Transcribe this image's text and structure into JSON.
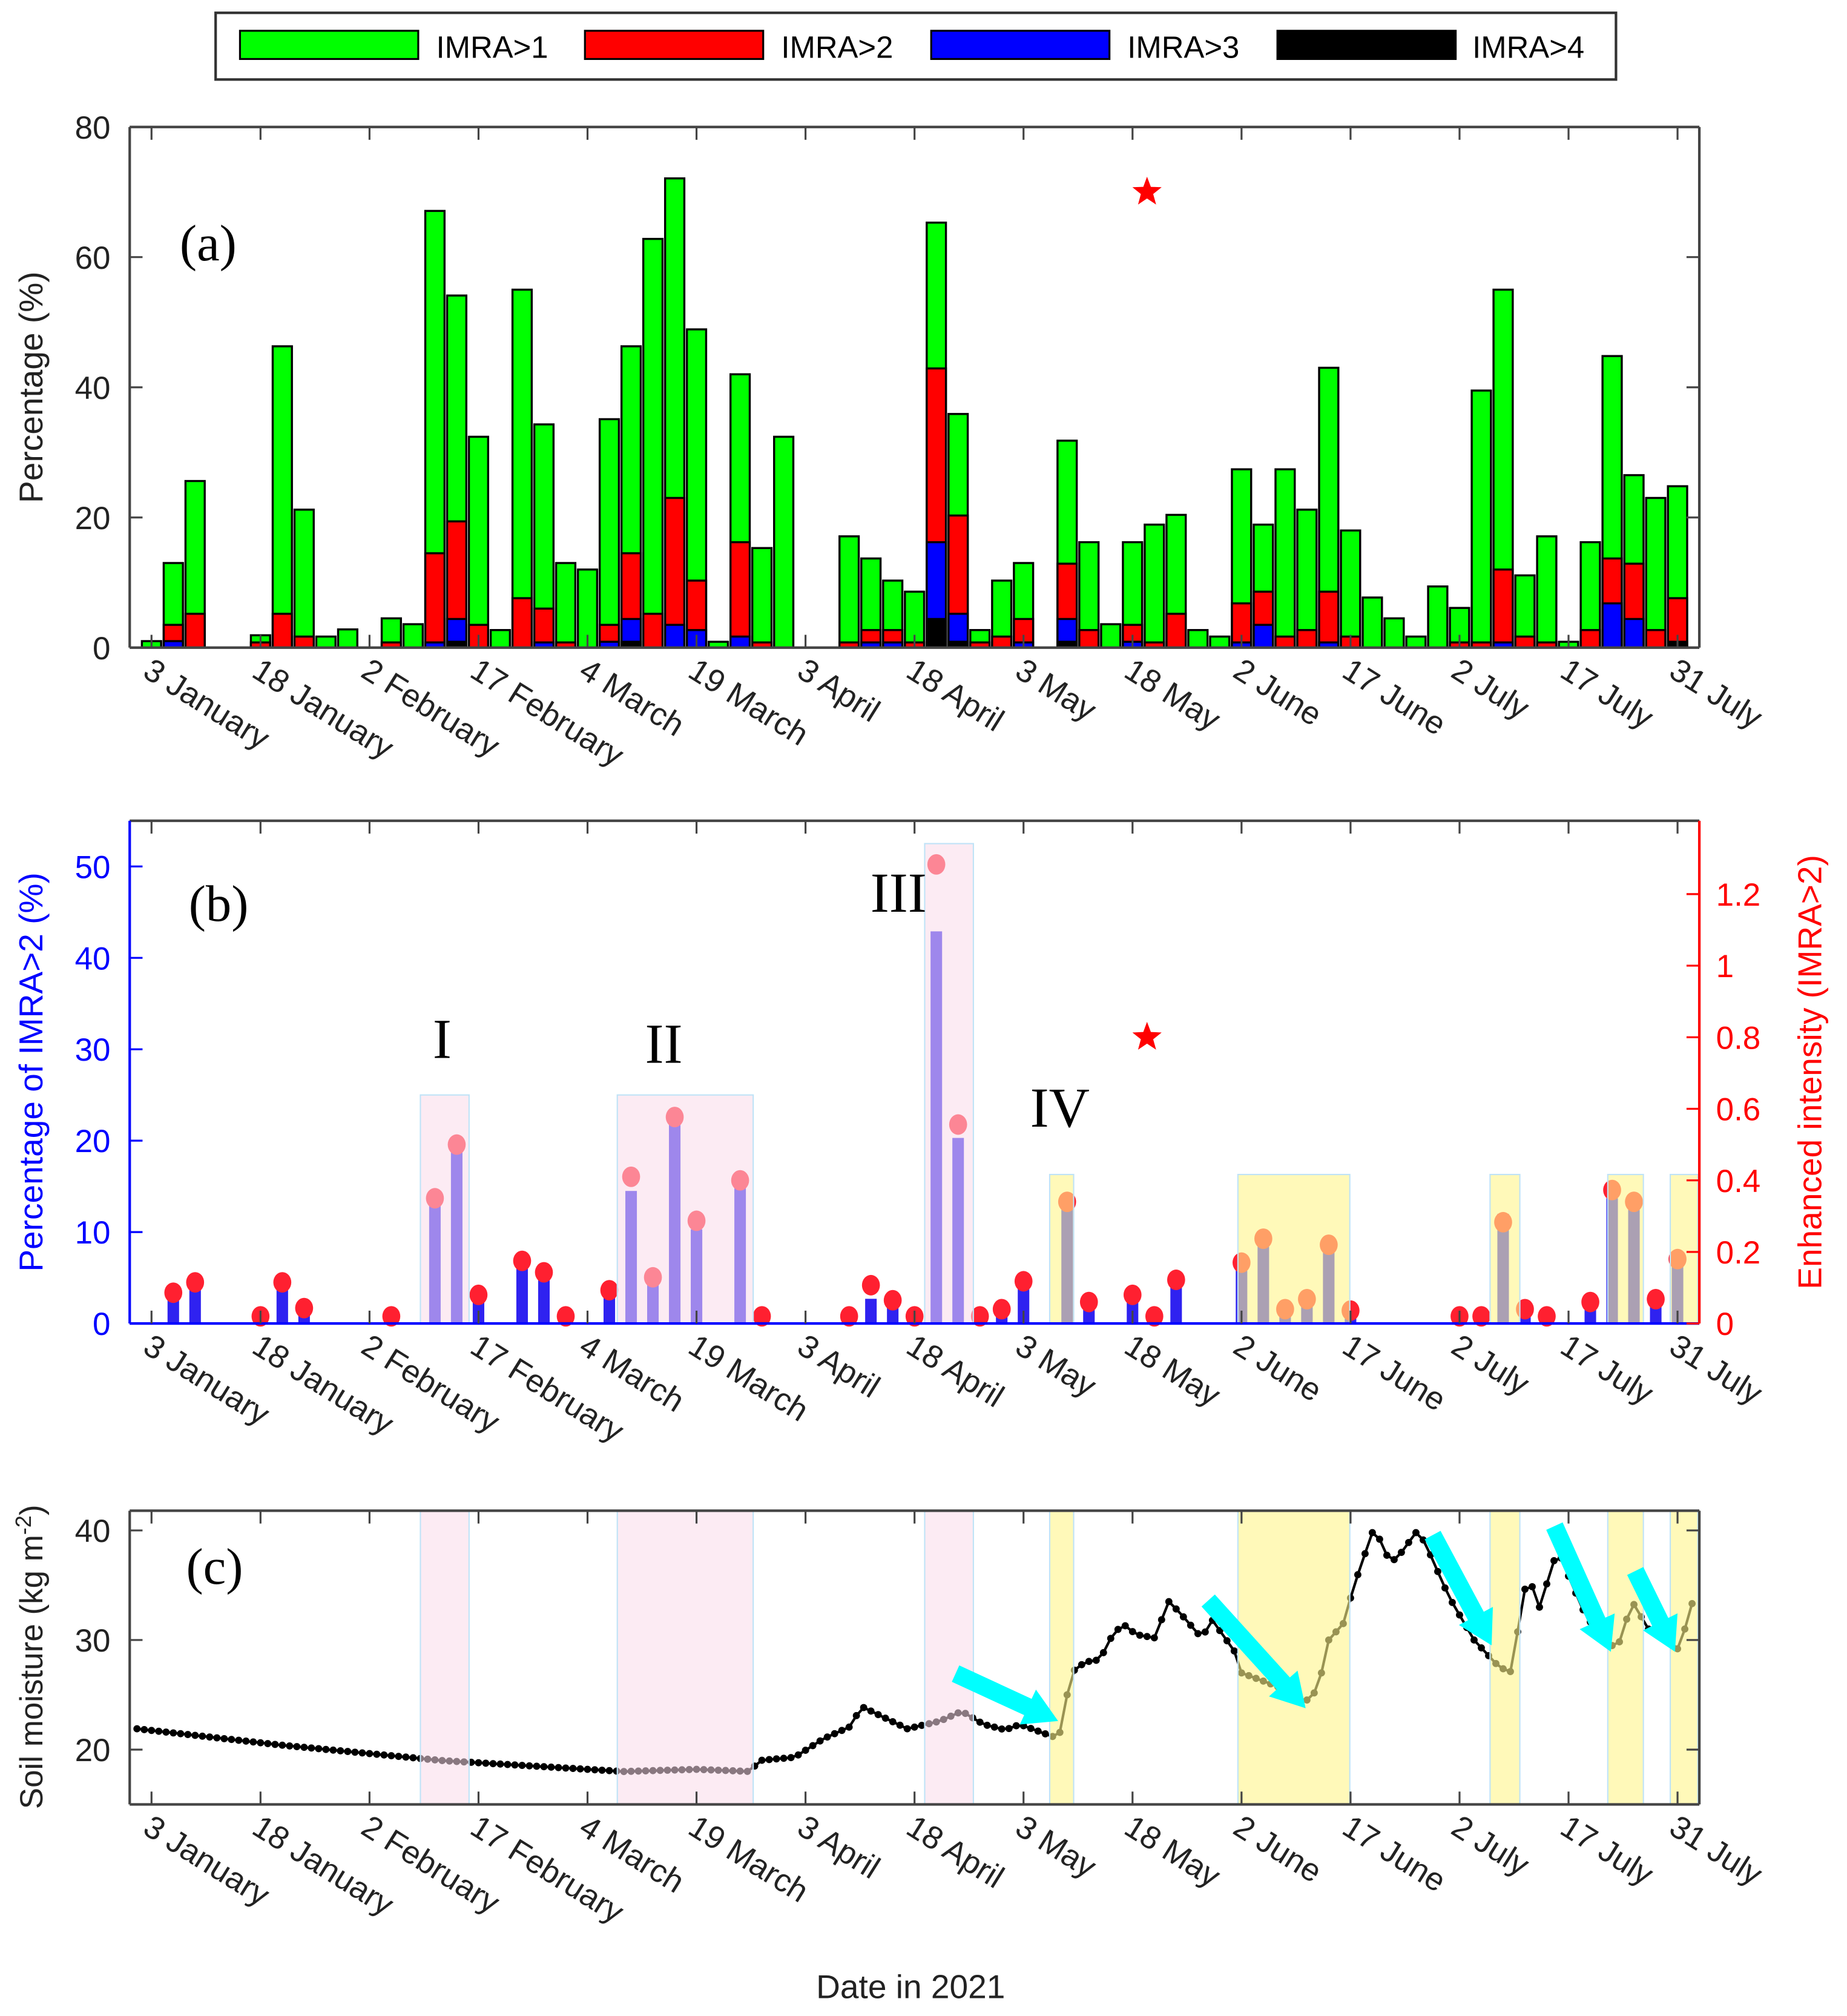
{
  "legend": [
    "IMRA>1",
    "IMRA>2",
    "IMRA>3",
    "IMRA>4"
  ],
  "colors": {
    "imra1": "#00ff00",
    "imra2": "#ff0000",
    "imra3": "#0000ff",
    "imra4": "#000000",
    "bar_b": "#2f22f0",
    "dot": "#ff2030",
    "pink": "#f9dbe9",
    "yellow": "#fff58a",
    "arrow": "#00ffff",
    "right_axis": "#ff0000",
    "left_axis_b": "#0000ff"
  },
  "xaxis": {
    "xlabel": "Date in 2021",
    "xlim": [
      -3,
      213
    ],
    "ticks": [
      {
        "day": 0,
        "label": "3 January"
      },
      {
        "day": 15,
        "label": "18 January"
      },
      {
        "day": 30,
        "label": "2 February"
      },
      {
        "day": 45,
        "label": "17 February"
      },
      {
        "day": 60,
        "label": "4 March"
      },
      {
        "day": 75,
        "label": "19 March"
      },
      {
        "day": 90,
        "label": "3 April"
      },
      {
        "day": 105,
        "label": "18 April"
      },
      {
        "day": 120,
        "label": "3 May"
      },
      {
        "day": 135,
        "label": "18 May"
      },
      {
        "day": 150,
        "label": "2 June"
      },
      {
        "day": 165,
        "label": "17 June"
      },
      {
        "day": 180,
        "label": "2 July"
      },
      {
        "day": 195,
        "label": "17 July"
      },
      {
        "day": 210,
        "label": "31 July"
      }
    ]
  },
  "chart_data": [
    {
      "type": "bar",
      "panel": "(a)",
      "ylabel": "Percentage (%)",
      "ylim": [
        0,
        80
      ],
      "yticks": [
        0,
        20,
        40,
        60,
        80
      ],
      "bar_step_days": 3,
      "series": [
        {
          "name": "IMRA>1",
          "values": [
            1,
            13,
            25.6,
            0,
            0,
            1.9,
            46.3,
            21.2,
            1.7,
            2.8,
            0,
            4.5,
            3.6,
            67.1,
            54.1,
            32.4,
            2.7,
            55,
            34.3,
            13,
            12,
            35.1,
            46.3,
            62.8,
            72.1,
            48.9,
            0.9,
            42,
            15.3,
            32.4,
            0,
            0,
            17.1,
            13.7,
            10.3,
            8.6,
            65.3,
            35.9,
            2.7,
            10.3,
            13,
            0,
            31.8,
            16.2,
            3.6,
            16.2,
            18.9,
            20.4,
            2.7,
            1.7,
            27.4,
            18.9,
            27.4,
            21.2,
            43,
            18,
            7.7,
            4.5,
            1.7,
            9.4,
            6.1,
            39.5,
            55,
            11.1,
            17.1,
            0.9,
            16.2,
            44.8,
            26.5,
            23,
            24.8
          ]
        },
        {
          "name": "IMRA>2",
          "values": [
            0,
            3.5,
            5.2,
            0,
            0,
            0.8,
            5.2,
            1.7,
            0,
            0,
            0,
            0.8,
            0,
            14.5,
            19.4,
            3.5,
            0,
            7.6,
            6,
            0.8,
            0,
            3.5,
            14.5,
            5.2,
            23,
            10.3,
            0,
            16.2,
            0.8,
            0,
            0,
            0,
            0.8,
            2.7,
            2.7,
            0.8,
            42.9,
            20.3,
            0.8,
            1.7,
            4.4,
            0,
            12.9,
            2.7,
            0,
            3.5,
            0.8,
            5.2,
            0,
            0,
            6.8,
            8.6,
            1.7,
            2.7,
            8.6,
            1.7,
            0,
            0,
            0,
            0,
            0.8,
            0.8,
            12,
            1.7,
            0.8,
            0,
            2.7,
            13.7,
            12.9,
            2.7,
            7.6
          ]
        },
        {
          "name": "IMRA>3",
          "values": [
            0,
            1,
            0,
            0,
            0,
            0,
            0,
            0,
            0,
            0,
            0,
            0,
            0,
            0.8,
            4.4,
            0,
            0,
            0,
            0.8,
            0,
            0,
            0.9,
            4.4,
            0,
            3.5,
            2.7,
            0,
            1.7,
            0,
            0,
            0,
            0,
            0,
            0.8,
            0.8,
            0,
            16.2,
            5.2,
            0,
            0,
            0.8,
            0,
            4.4,
            0,
            0,
            0.9,
            0,
            0,
            0,
            0,
            0.8,
            3.5,
            0,
            0,
            0.8,
            0,
            0,
            0,
            0,
            0,
            0,
            0,
            0.8,
            0,
            0,
            0,
            0,
            6.8,
            4.4,
            0,
            0
          ]
        },
        {
          "name": "IMRA>4",
          "values": [
            0,
            0,
            0,
            0,
            0,
            0,
            0,
            0,
            0,
            0,
            0,
            0,
            0,
            0,
            0.9,
            0,
            0,
            0,
            0,
            0,
            0,
            0,
            0.9,
            0,
            0,
            0,
            0,
            0,
            0,
            0,
            0,
            0,
            0,
            0,
            0,
            0,
            4.4,
            0.9,
            0,
            0,
            0,
            0,
            0.9,
            0,
            0,
            0,
            0,
            0,
            0,
            0,
            0,
            0,
            0,
            0,
            0,
            0,
            0,
            0,
            0,
            0,
            0,
            0,
            0,
            0,
            0,
            0,
            0,
            0,
            0,
            0,
            0.9
          ]
        }
      ],
      "star": {
        "day": 137,
        "value": 70
      }
    },
    {
      "type": "bar",
      "panel": "(b)",
      "ylabel_left": "Percentage of IMRA>2 (%)",
      "ylabel_right": "Enhanced intensity (IMRA>2)",
      "ylim_left": [
        0,
        55
      ],
      "ylim_right": [
        0,
        1.405
      ],
      "yticks_left": [
        0,
        10,
        20,
        30,
        40,
        50
      ],
      "yticks_right": [
        {
          "v": 0,
          "label": "0"
        },
        {
          "v": 0.2,
          "label": "0.2"
        },
        {
          "v": 0.4,
          "label": "0.4"
        },
        {
          "v": 0.6,
          "label": "0.6"
        },
        {
          "v": 0.8,
          "label": "0.8"
        },
        {
          "v": 1,
          "label": "1"
        },
        {
          "v": 1.2,
          "label": "1.2"
        }
      ],
      "intensity": [
        null,
        0.086,
        0.115,
        null,
        null,
        0.02,
        0.115,
        0.043,
        null,
        null,
        null,
        0.02,
        null,
        0.35,
        0.5,
        0.08,
        null,
        0.175,
        0.143,
        0.02,
        null,
        0.093,
        0.41,
        0.129,
        0.577,
        0.287,
        null,
        0.4,
        0.02,
        null,
        null,
        null,
        0.02,
        0.107,
        0.065,
        0.02,
        1.283,
        0.556,
        0.02,
        0.04,
        0.118,
        null,
        0.34,
        0.06,
        null,
        0.08,
        0.02,
        0.122,
        null,
        null,
        0.17,
        0.237,
        0.04,
        0.068,
        0.22,
        0.036,
        null,
        null,
        null,
        null,
        0.02,
        0.02,
        0.283,
        0.04,
        0.02,
        null,
        0.06,
        0.373,
        0.34,
        0.068,
        0.18
      ],
      "periods": [
        {
          "label": "I",
          "start": 37,
          "end": 43.7,
          "top": 25,
          "kind": "pink",
          "label_day": 40,
          "label_value": 31
        },
        {
          "label": "II",
          "start": 64.1,
          "end": 82.8,
          "top": 25,
          "kind": "pink",
          "label_day": 70.5,
          "label_value": 30.5
        },
        {
          "label": "III",
          "start": 106.4,
          "end": 113.1,
          "top": 52.5,
          "kind": "pink",
          "label_day": 102.8,
          "label_value": 47
        },
        {
          "label": "IV",
          "start": 123.6,
          "end": 126.9,
          "top": 16.3,
          "kind": "yellow",
          "label_day": 125,
          "label_value": 23.5
        },
        {
          "label": "",
          "start": 149.5,
          "end": 164.9,
          "top": 16.3,
          "kind": "yellow"
        },
        {
          "label": "",
          "start": 184.2,
          "end": 188.3,
          "top": 16.3,
          "kind": "yellow"
        },
        {
          "label": "",
          "start": 200.4,
          "end": 205.3,
          "top": 16.3,
          "kind": "yellow"
        },
        {
          "label": "",
          "start": 209,
          "end": 212.8,
          "top": 16.3,
          "kind": "yellow"
        }
      ],
      "star": {
        "day": 137,
        "value_right": 0.8
      }
    },
    {
      "type": "line",
      "panel": "(c)",
      "ylabel": "Soil moisture (kg m",
      "ylabel_sup": "-2",
      "ylabel_close": ")",
      "ylim": [
        15,
        41.8
      ],
      "yticks": [
        20,
        30,
        40
      ],
      "keypoints": [
        [
          -2,
          21.9
        ],
        [
          18,
          20.4
        ],
        [
          40,
          19
        ],
        [
          55,
          18.4
        ],
        [
          65,
          18.0
        ],
        [
          75,
          18.2
        ],
        [
          82.5,
          18.0
        ],
        [
          83.5,
          19
        ],
        [
          88.5,
          19.3
        ],
        [
          92.5,
          21
        ],
        [
          96.5,
          22.2
        ],
        [
          97.5,
          24
        ],
        [
          104,
          21.9
        ],
        [
          108.5,
          22.6
        ],
        [
          111.5,
          23.5
        ],
        [
          114.5,
          22.3
        ],
        [
          117.5,
          21.8
        ],
        [
          119.5,
          22.3
        ],
        [
          124.8,
          21
        ],
        [
          125.5,
          23
        ],
        [
          126.5,
          27
        ],
        [
          128.5,
          28
        ],
        [
          130.5,
          28.2
        ],
        [
          132.5,
          30.8
        ],
        [
          134,
          31.3
        ],
        [
          135.5,
          30.5
        ],
        [
          138,
          30.2
        ],
        [
          140,
          33.5
        ],
        [
          141.5,
          32.5
        ],
        [
          144.5,
          30.2
        ],
        [
          146,
          31.8
        ],
        [
          149,
          29
        ],
        [
          150,
          27
        ],
        [
          154,
          26
        ],
        [
          157,
          25.2
        ],
        [
          158.5,
          24.2
        ],
        [
          160.5,
          25.5
        ],
        [
          162,
          30
        ],
        [
          164,
          31.5
        ],
        [
          165.5,
          35
        ],
        [
          168,
          39.8
        ],
        [
          169,
          39.2
        ],
        [
          170.5,
          37
        ],
        [
          172,
          38
        ],
        [
          174,
          39.8
        ],
        [
          175.2,
          39
        ],
        [
          176.5,
          37
        ],
        [
          178.5,
          34
        ],
        [
          182,
          30
        ],
        [
          185.5,
          27.5
        ],
        [
          187.5,
          27
        ],
        [
          188.3,
          33
        ],
        [
          189.5,
          35.8
        ],
        [
          191,
          33
        ],
        [
          193.5,
          38.3
        ],
        [
          195.2,
          35.5
        ],
        [
          197.5,
          32
        ],
        [
          201,
          29.5
        ],
        [
          202.5,
          30
        ],
        [
          203.5,
          33.8
        ],
        [
          206,
          31
        ],
        [
          208.5,
          30.2
        ],
        [
          210,
          29.2
        ],
        [
          211,
          31
        ],
        [
          211.8,
          33.6
        ],
        [
          212.6,
          32.5
        ]
      ]
    }
  ]
}
